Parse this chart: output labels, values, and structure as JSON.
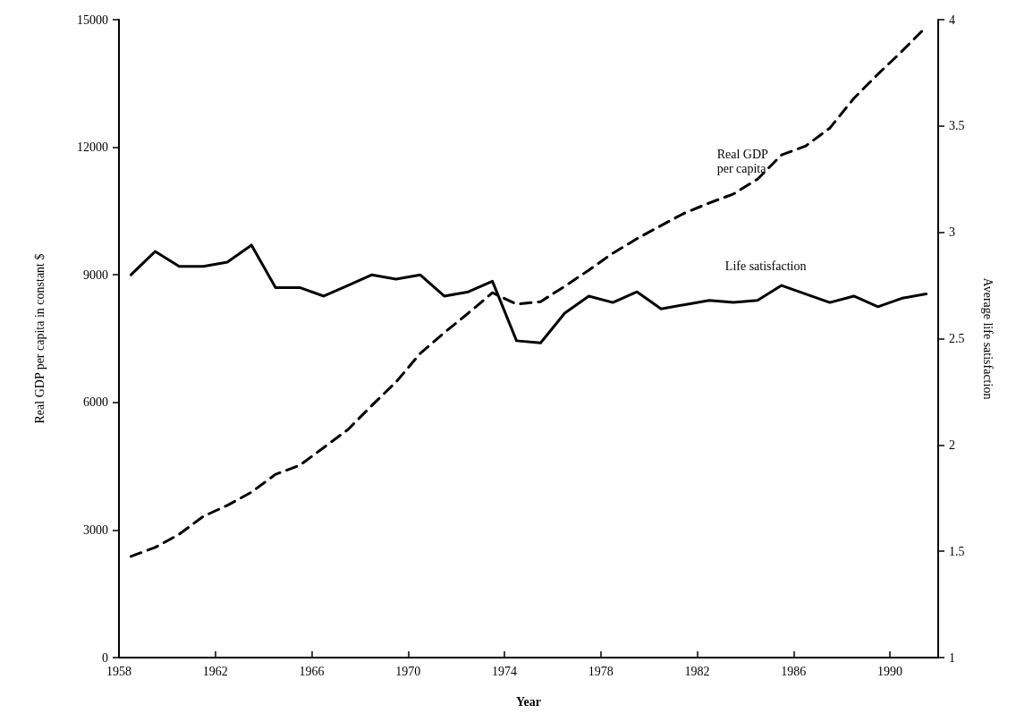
{
  "chart_data": {
    "type": "line",
    "xlabel": "Year",
    "ylabel": "Real GDP per capita in constant $",
    "y2label": "Average life satisfaction",
    "x": [
      1958.5,
      1959.5,
      1960.5,
      1961.5,
      1962.5,
      1963.5,
      1964.5,
      1965.5,
      1966.5,
      1967.5,
      1968.5,
      1969.5,
      1970.5,
      1971.5,
      1972.5,
      1973.5,
      1974.5,
      1975.5,
      1976.5,
      1977.5,
      1978.5,
      1979.5,
      1980.5,
      1981.5,
      1982.5,
      1983.5,
      1984.5,
      1985.5,
      1986.5,
      1987.5,
      1988.5,
      1989.5,
      1990.5,
      1991.5
    ],
    "series": [
      {
        "name": "Real GDP\nper capita",
        "color": "#000000",
        "line_style": "dashed",
        "values": [
          2380,
          2590,
          2900,
          3320,
          3580,
          3890,
          4310,
          4520,
          4940,
          5360,
          5930,
          6480,
          7150,
          7640,
          8100,
          8580,
          8310,
          8370,
          8730,
          9110,
          9510,
          9850,
          10160,
          10460,
          10690,
          10900,
          11250,
          11820,
          12030,
          12450,
          13150,
          13720,
          14260,
          14830
        ]
      },
      {
        "name": "Life satisfaction",
        "color": "#000000",
        "line_style": "solid",
        "axis": "y2",
        "values": [
          2.8,
          2.91,
          2.84,
          2.84,
          2.86,
          2.94,
          2.74,
          2.74,
          2.7,
          2.75,
          2.8,
          2.78,
          2.8,
          2.7,
          2.72,
          2.77,
          2.49,
          2.48,
          2.62,
          2.7,
          2.67,
          2.72,
          2.64,
          2.66,
          2.68,
          2.67,
          2.68,
          2.75,
          2.71,
          2.67,
          2.7,
          2.65,
          2.69,
          2.71
        ]
      }
    ],
    "xlim": [
      1958,
      1992
    ],
    "xticks": [
      1958,
      1962,
      1966,
      1970,
      1974,
      1978,
      1982,
      1986,
      1990
    ],
    "ylim": [
      0,
      15000
    ],
    "yticks": [
      0,
      3000,
      6000,
      9000,
      12000,
      15000
    ],
    "y2lim": [
      1,
      4
    ],
    "y2ticks": [
      1,
      1.5,
      2,
      2.5,
      3,
      3.5,
      4
    ],
    "grid": false,
    "legend": false,
    "marker": "none"
  }
}
